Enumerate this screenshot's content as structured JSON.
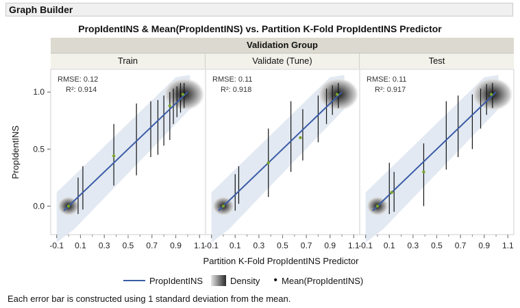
{
  "window": {
    "title": "Graph Builder"
  },
  "chart_title": "PropIdentINS & Mean(PropIdentINS) vs. Partition K-Fold PropIdentINS Predictor",
  "group_label": "Validation Group",
  "panels": [
    {
      "name": "Train",
      "rmse": "RMSE: 0.12",
      "r2": "R²: 0.914"
    },
    {
      "name": "Validate (Tune)",
      "rmse": "RMSE: 0.11",
      "r2": "R²: 0.918"
    },
    {
      "name": "Test",
      "rmse": "RMSE: 0.11",
      "r2": "R²: 0.917"
    }
  ],
  "xlabel": "Partition K-Fold PropIdentINS Predictor",
  "ylabel": "PropIdentINS",
  "legend": {
    "line": "PropIdentINS",
    "density": "Density",
    "mean": "Mean(PropIdentINS)"
  },
  "footnote": "Each error bar is constructed using 1 standard deviation from the mean.",
  "colors": {
    "fit_line": "#3a5ba6",
    "band": "#dde5f0",
    "error_bar": "#111111",
    "mean_dot": "#7aa32a"
  },
  "chart_data": {
    "type": "scatter",
    "xlim": [
      -0.15,
      1.15
    ],
    "ylim": [
      -0.25,
      1.2
    ],
    "xticks": [
      "-0.1",
      "0.1",
      "0.3",
      "0.5",
      "0.7",
      "0.9",
      "1.1"
    ],
    "xtick_values": [
      -0.1,
      0.1,
      0.3,
      0.5,
      0.7,
      0.9,
      1.1
    ],
    "yticks": [
      "0.0",
      "0.5",
      "1.0"
    ],
    "ytick_values": [
      0.0,
      0.5,
      1.0
    ],
    "fit_line": {
      "x": [
        -0.04,
        1.0
      ],
      "y": [
        -0.04,
        1.0
      ]
    },
    "series": [
      {
        "name": "Train",
        "error_bars": [
          {
            "x": 0.08,
            "low": -0.07,
            "high": 0.25
          },
          {
            "x": 0.12,
            "low": -0.03,
            "high": 0.35
          },
          {
            "x": 0.38,
            "low": 0.18,
            "high": 0.72
          },
          {
            "x": 0.57,
            "low": 0.27,
            "high": 0.9
          },
          {
            "x": 0.69,
            "low": 0.43,
            "high": 0.92
          },
          {
            "x": 0.75,
            "low": 0.45,
            "high": 0.93
          },
          {
            "x": 0.8,
            "low": 0.53,
            "high": 0.97
          },
          {
            "x": 0.85,
            "low": 0.58,
            "high": 1.0
          },
          {
            "x": 0.88,
            "low": 0.72,
            "high": 1.03
          },
          {
            "x": 0.91,
            "low": 0.78,
            "high": 1.05
          },
          {
            "x": 0.94,
            "low": 0.82,
            "high": 1.08
          },
          {
            "x": 0.97,
            "low": 0.86,
            "high": 1.08
          }
        ],
        "means": [
          [
            0.0,
            0.0
          ],
          [
            0.38,
            0.44
          ],
          [
            0.85,
            0.88
          ],
          [
            0.96,
            0.98
          ]
        ]
      },
      {
        "name": "Validate (Tune)",
        "error_bars": [
          {
            "x": 0.1,
            "low": -0.04,
            "high": 0.28
          },
          {
            "x": 0.13,
            "low": 0.02,
            "high": 0.35
          },
          {
            "x": 0.38,
            "low": 0.08,
            "high": 0.68
          },
          {
            "x": 0.57,
            "low": 0.3,
            "high": 0.92
          },
          {
            "x": 0.67,
            "low": 0.4,
            "high": 0.85
          },
          {
            "x": 0.8,
            "low": 0.56,
            "high": 0.97
          },
          {
            "x": 0.87,
            "low": 0.72,
            "high": 1.03
          },
          {
            "x": 0.92,
            "low": 0.8,
            "high": 1.06
          },
          {
            "x": 0.97,
            "low": 0.86,
            "high": 1.08
          }
        ],
        "means": [
          [
            0.0,
            0.0
          ],
          [
            0.38,
            0.38
          ],
          [
            0.65,
            0.6
          ],
          [
            0.96,
            0.98
          ]
        ]
      },
      {
        "name": "Test",
        "error_bars": [
          {
            "x": 0.1,
            "low": -0.07,
            "high": 0.38
          },
          {
            "x": 0.14,
            "low": -0.05,
            "high": 0.3
          },
          {
            "x": 0.39,
            "low": 0.0,
            "high": 0.55
          },
          {
            "x": 0.58,
            "low": 0.32,
            "high": 0.92
          },
          {
            "x": 0.68,
            "low": 0.43,
            "high": 0.97
          },
          {
            "x": 0.8,
            "low": 0.5,
            "high": 0.98
          },
          {
            "x": 0.87,
            "low": 0.68,
            "high": 1.03
          },
          {
            "x": 0.92,
            "low": 0.8,
            "high": 1.07
          },
          {
            "x": 0.97,
            "low": 0.86,
            "high": 1.08
          }
        ],
        "means": [
          [
            0.0,
            0.0
          ],
          [
            0.12,
            0.12
          ],
          [
            0.39,
            0.3
          ],
          [
            0.96,
            0.98
          ]
        ]
      }
    ],
    "density_peaks": [
      [
        0.0,
        0.0
      ],
      [
        0.97,
        0.98
      ]
    ]
  }
}
